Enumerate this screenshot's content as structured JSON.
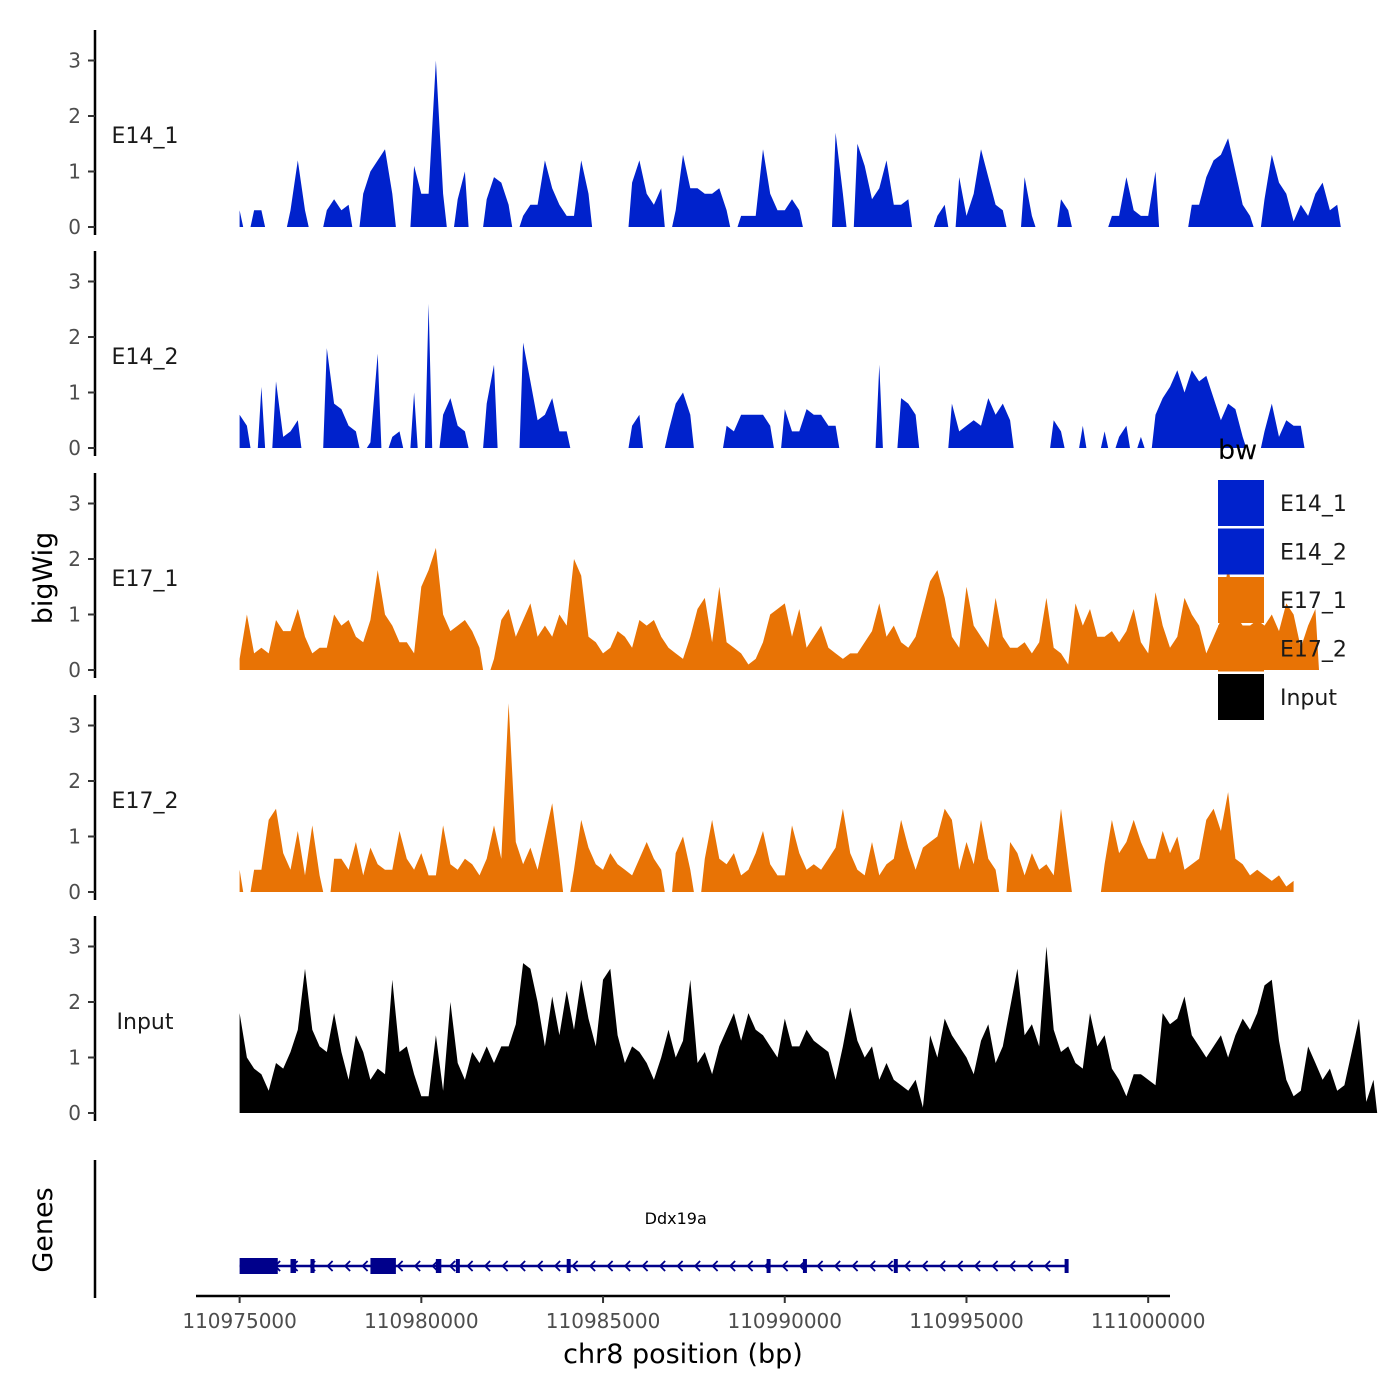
{
  "chart_data": {
    "type": "area",
    "chromosome": "chr8",
    "xlabel": "chr8 position (bp)",
    "ylabel": "bigWig",
    "xlim": [
      110973800,
      111000600
    ],
    "x_ticks": [
      110975000,
      110980000,
      110985000,
      110990000,
      110995000,
      111000000
    ],
    "x_tick_labels": [
      "110975000",
      "110980000",
      "110985000",
      "110990000",
      "110995000",
      "111000000"
    ],
    "ylim": [
      0,
      3.5
    ],
    "y_ticks": [
      "0",
      "1",
      "2",
      "3"
    ],
    "x_start": 110975000,
    "x_step": 200,
    "series": [
      {
        "name": "E14_1",
        "color": "#0022CC",
        "values": [
          0.3,
          0,
          0.3,
          0.3,
          0,
          0,
          0,
          0.3,
          1.2,
          0.3,
          0,
          0,
          0.3,
          0.5,
          0.3,
          0.4,
          0,
          0.6,
          1.0,
          1.2,
          1.4,
          0.6,
          0,
          0,
          1.1,
          0.6,
          0.6,
          3.0,
          0.6,
          0,
          0.5,
          1.0,
          0,
          0,
          0.5,
          0.9,
          0.8,
          0.4,
          0,
          0.2,
          0.4,
          0.4,
          1.2,
          0.7,
          0.4,
          0.2,
          0.2,
          1.2,
          0.6,
          0,
          0,
          0,
          0,
          0,
          0.8,
          1.2,
          0.6,
          0.4,
          0.7,
          0,
          0.3,
          1.3,
          0.7,
          0.7,
          0.6,
          0.6,
          0.7,
          0.3,
          0,
          0.2,
          0.2,
          0.2,
          1.4,
          0.6,
          0.3,
          0.3,
          0.5,
          0.3,
          0,
          0,
          0,
          0,
          1.7,
          0.6,
          0,
          1.5,
          1.1,
          0.5,
          0.7,
          1.2,
          0.4,
          0.4,
          0.5,
          0,
          0,
          0,
          0.2,
          0.4,
          0,
          0.9,
          0.2,
          0.6,
          1.4,
          0.9,
          0.4,
          0.3,
          0,
          0,
          0.9,
          0.2,
          0,
          0,
          0,
          0.5,
          0.3,
          0,
          0,
          0,
          0,
          0,
          0.2,
          0.2,
          0.9,
          0.3,
          0.2,
          0.2,
          1.0,
          0,
          0,
          0,
          0,
          0.4,
          0.4,
          0.9,
          1.2,
          1.3,
          1.6,
          1.0,
          0.4,
          0.2,
          0,
          0.5,
          1.3,
          0.8,
          0.6,
          0.1,
          0.4,
          0.2,
          0.6,
          0.8,
          0.3,
          0.4,
          0
        ]
      },
      {
        "name": "E14_2",
        "color": "#0022CC",
        "values": [
          0.6,
          0.4,
          0,
          1.1,
          0,
          1.2,
          0.2,
          0.3,
          0.5,
          0,
          0,
          0,
          1.8,
          0.8,
          0.7,
          0.4,
          0.3,
          0,
          0.1,
          1.7,
          0,
          0.2,
          0.3,
          0,
          1.0,
          0,
          2.6,
          0,
          0.6,
          0.9,
          0.4,
          0.3,
          0,
          0,
          0.8,
          1.5,
          0,
          0,
          0,
          1.9,
          1.2,
          0.5,
          0.6,
          0.9,
          0.3,
          0.3,
          0,
          0,
          0,
          0,
          0,
          0,
          0,
          0,
          0.4,
          0.6,
          0,
          0,
          0,
          0.3,
          0.8,
          1.0,
          0.6,
          0,
          0,
          0,
          0,
          0.4,
          0.3,
          0.6,
          0.6,
          0.6,
          0.6,
          0.4,
          0,
          0.7,
          0.3,
          0.3,
          0.7,
          0.6,
          0.6,
          0.4,
          0.4,
          0,
          0,
          0,
          0,
          0,
          1.5,
          0,
          0,
          0.9,
          0.8,
          0.6,
          0,
          0,
          0,
          0,
          0.8,
          0.3,
          0.4,
          0.5,
          0.4,
          0.9,
          0.6,
          0.8,
          0.5,
          0,
          0,
          0,
          0,
          0,
          0.5,
          0.3,
          0,
          0,
          0.4,
          0,
          0,
          0.3,
          0,
          0.2,
          0.4,
          0,
          0.2,
          0,
          0.6,
          0.9,
          1.1,
          1.4,
          1.0,
          1.4,
          1.2,
          1.3,
          0.9,
          0.5,
          0.8,
          0.7,
          0.2,
          0,
          0,
          0.3,
          0.8,
          0.2,
          0.5,
          0.4,
          0.4,
          0
        ]
      },
      {
        "name": "E17_1",
        "color": "#E87305",
        "values": [
          0.2,
          1.0,
          0.3,
          0.4,
          0.3,
          0.9,
          0.7,
          0.7,
          1.1,
          0.6,
          0.3,
          0.4,
          0.4,
          1.0,
          0.8,
          0.9,
          0.6,
          0.5,
          0.9,
          1.8,
          1.0,
          0.8,
          0.5,
          0.5,
          0.3,
          1.5,
          1.8,
          2.2,
          1.0,
          0.7,
          0.8,
          0.9,
          0.7,
          0.4,
          0,
          0.2,
          0.9,
          1.1,
          0.6,
          0.9,
          1.2,
          0.6,
          0.8,
          0.6,
          1.0,
          0.8,
          2.0,
          1.7,
          0.6,
          0.5,
          0.3,
          0.4,
          0.7,
          0.6,
          0.4,
          0.9,
          0.8,
          0.9,
          0.6,
          0.4,
          0.3,
          0.2,
          0.6,
          1.1,
          1.3,
          0.5,
          1.5,
          0.5,
          0.4,
          0.3,
          0.1,
          0.2,
          0.5,
          1.0,
          1.1,
          1.2,
          0.6,
          1.1,
          0.4,
          0.6,
          0.8,
          0.4,
          0.3,
          0.2,
          0.3,
          0.3,
          0.5,
          0.7,
          1.2,
          0.6,
          0.8,
          0.5,
          0.4,
          0.6,
          1.1,
          1.6,
          1.8,
          1.3,
          0.6,
          0.4,
          1.5,
          0.8,
          0.6,
          0.4,
          1.3,
          0.6,
          0.4,
          0.4,
          0.5,
          0.3,
          0.5,
          1.3,
          0.4,
          0.3,
          0.1,
          1.2,
          0.8,
          1.1,
          0.6,
          0.6,
          0.7,
          0.5,
          0.7,
          1.1,
          0.5,
          0.3,
          1.4,
          0.8,
          0.4,
          0.6,
          1.3,
          1.0,
          0.8,
          0.3,
          0.6,
          0.9,
          1.9,
          1.0,
          0.8,
          0.8,
          0.9,
          0.8,
          1.0,
          0.7,
          1.2,
          1.0,
          0.4,
          0.8,
          1.1,
          0
        ]
      },
      {
        "name": "E17_2",
        "color": "#E87305",
        "values": [
          0.4,
          0,
          0.4,
          0.4,
          1.3,
          1.5,
          0.7,
          0.4,
          1.1,
          0.3,
          1.2,
          0.3,
          0,
          0.6,
          0.6,
          0.4,
          0.9,
          0.3,
          0.8,
          0.5,
          0.4,
          0.4,
          1.1,
          0.6,
          0.4,
          0.7,
          0.3,
          0.3,
          1.2,
          0.5,
          0.4,
          0.6,
          0.5,
          0.3,
          0.6,
          1.2,
          0.6,
          3.4,
          0.9,
          0.5,
          0.8,
          0.4,
          1.0,
          1.6,
          0.6,
          0,
          0.4,
          1.3,
          0.8,
          0.5,
          0.4,
          0.7,
          0.5,
          0.4,
          0.3,
          0.6,
          0.9,
          0.6,
          0.4,
          0,
          0.7,
          1.0,
          0.4,
          0,
          0.6,
          1.3,
          0.6,
          0.5,
          0.7,
          0.3,
          0.4,
          0.7,
          1.1,
          0.5,
          0.3,
          0.3,
          1.2,
          0.7,
          0.4,
          0.5,
          0.4,
          0.6,
          0.8,
          1.5,
          0.7,
          0.4,
          0.3,
          0.9,
          0.3,
          0.5,
          0.6,
          1.3,
          0.8,
          0.4,
          0.8,
          0.9,
          1.0,
          1.5,
          1.3,
          0.4,
          0.9,
          0.5,
          1.3,
          0.6,
          0.4,
          0,
          0.9,
          0.7,
          0.3,
          0.7,
          0.4,
          0.5,
          0.3,
          1.5,
          0.5,
          0,
          0,
          0,
          0,
          0.5,
          1.3,
          0.7,
          0.9,
          1.3,
          0.9,
          0.6,
          0.6,
          1.1,
          0.7,
          1.0,
          0.4,
          0.5,
          0.6,
          1.3,
          1.5,
          1.1,
          1.8,
          0.6,
          0.5,
          0.3,
          0.4,
          0.3,
          0.2,
          0.3,
          0.1,
          0.2
        ]
      },
      {
        "name": "Input",
        "color": "#000000",
        "values": [
          1.8,
          1.0,
          0.8,
          0.7,
          0.4,
          0.9,
          0.8,
          1.1,
          1.5,
          2.6,
          1.5,
          1.2,
          1.1,
          1.8,
          1.1,
          0.6,
          1.4,
          1.1,
          0.6,
          0.8,
          0.7,
          2.4,
          1.1,
          1.2,
          0.7,
          0.3,
          0.3,
          1.4,
          0.4,
          2.0,
          0.9,
          0.6,
          1.1,
          0.9,
          1.2,
          0.9,
          1.2,
          1.2,
          1.6,
          2.7,
          2.6,
          2.0,
          1.2,
          2.1,
          1.4,
          2.2,
          1.5,
          2.4,
          1.7,
          1.2,
          2.4,
          2.6,
          1.4,
          0.9,
          1.2,
          1.1,
          0.9,
          0.6,
          1.0,
          1.5,
          1.0,
          1.3,
          2.4,
          0.9,
          1.1,
          0.7,
          1.2,
          1.5,
          1.8,
          1.3,
          1.8,
          1.5,
          1.4,
          1.2,
          1.0,
          1.7,
          1.2,
          1.2,
          1.5,
          1.3,
          1.2,
          1.1,
          0.6,
          1.2,
          1.9,
          1.3,
          1.0,
          1.2,
          0.6,
          0.9,
          0.6,
          0.5,
          0.4,
          0.6,
          0.1,
          1.4,
          1.0,
          1.7,
          1.4,
          1.2,
          1.0,
          0.7,
          1.3,
          1.6,
          0.9,
          1.2,
          1.9,
          2.6,
          1.4,
          1.6,
          1.2,
          3.0,
          1.5,
          1.1,
          1.2,
          0.9,
          0.8,
          1.8,
          1.2,
          1.4,
          0.8,
          0.6,
          0.3,
          0.7,
          0.7,
          0.6,
          0.5,
          1.8,
          1.6,
          1.7,
          2.1,
          1.4,
          1.2,
          1.0,
          1.2,
          1.4,
          1.0,
          1.4,
          1.7,
          1.5,
          1.8,
          2.3,
          2.4,
          1.3,
          0.6,
          0.3,
          0.4,
          1.2,
          0.9,
          0.6,
          0.8,
          0.4,
          0.5,
          1.1,
          1.7,
          0.2,
          0.6,
          0
        ]
      }
    ],
    "legend": {
      "title": "bw",
      "position": "right",
      "entries": [
        {
          "label": "E14_1",
          "color": "#0022CC"
        },
        {
          "label": "E14_2",
          "color": "#0022CC"
        },
        {
          "label": "E17_1",
          "color": "#E87305"
        },
        {
          "label": "E17_2",
          "color": "#E87305"
        },
        {
          "label": "Input",
          "color": "#000000"
        }
      ]
    },
    "genes_track": {
      "ylabel": "Genes",
      "color": "#00008B",
      "strand": "-",
      "genes": [
        {
          "name": "Ddx19a",
          "start": 110975000,
          "end": 110997800,
          "exons": [
            [
              110975000,
              110976050
            ],
            [
              110976400,
              110976550
            ],
            [
              110976950,
              110977050
            ],
            [
              110978600,
              110979300
            ],
            [
              110980400,
              110980550
            ],
            [
              110980950,
              110981050
            ],
            [
              110984000,
              110984100
            ],
            [
              110989500,
              110989600
            ],
            [
              110990500,
              110990550
            ],
            [
              110993000,
              110993040
            ],
            [
              110997700,
              110997800
            ]
          ]
        }
      ]
    }
  }
}
